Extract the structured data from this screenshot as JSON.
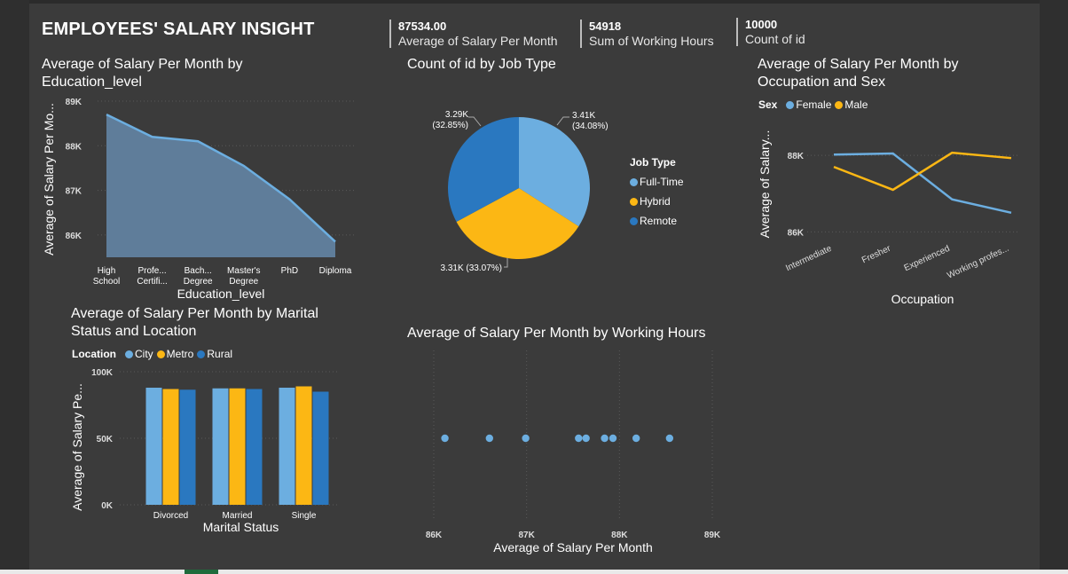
{
  "title": "EMPLOYEES' SALARY INSIGHT",
  "kpis": [
    {
      "value": "87534.00",
      "label": "Average of Salary Per Month"
    },
    {
      "value": "54918",
      "label": "Sum of Working Hours"
    },
    {
      "value": "10000",
      "label": "Count of id"
    }
  ],
  "colors": {
    "blue_light": "#6caee0",
    "yellow": "#fcb714",
    "blue_dark": "#2a78c0",
    "area": "#5f7d9a",
    "line": "#6caee0"
  },
  "chart_data": [
    {
      "type": "area",
      "title": "Average of Salary Per Month by Education_level",
      "xlabel": "Education_level",
      "ylabel": "Average of Salary Per Mo...",
      "categories": [
        [
          "High",
          "School"
        ],
        [
          "Profe...",
          "Certifi..."
        ],
        [
          "Bach...",
          "Degree"
        ],
        [
          "Master's",
          "Degree"
        ],
        [
          "PhD"
        ],
        [
          "Diploma"
        ]
      ],
      "values": [
        88700,
        88200,
        88100,
        87550,
        86800,
        85850
      ],
      "yticks": [
        "89K",
        "88K",
        "87K",
        "86K"
      ],
      "ytick_values": [
        89000,
        88000,
        87000,
        86000
      ],
      "ylim": [
        85500,
        89000
      ]
    },
    {
      "type": "pie",
      "title": "Count of id by Job Type",
      "legend_title": "Job Type",
      "slices": [
        {
          "name": "Full-Time",
          "value": 3410,
          "label": "3.41K",
          "pct": "(34.08%)"
        },
        {
          "name": "Hybrid",
          "value": 3310,
          "label": "3.31K (33.07%)",
          "pct": ""
        },
        {
          "name": "Remote",
          "value": 3290,
          "label": "3.29K",
          "pct": "(32.85%)"
        }
      ]
    },
    {
      "type": "line",
      "title": "Average of Salary Per Month by Occupation and Sex",
      "xlabel": "Occupation",
      "ylabel": "Average of Salary...",
      "legend_title": "Sex",
      "categories": [
        "Intermediate",
        "Fresher",
        "Experienced",
        "Working profes..."
      ],
      "series": [
        {
          "name": "Female",
          "values": [
            88020,
            88050,
            86850,
            86500
          ]
        },
        {
          "name": "Male",
          "values": [
            87700,
            87100,
            88070,
            87930
          ]
        }
      ],
      "yticks": [
        "88K",
        "86K"
      ],
      "ytick_values": [
        88000,
        86000
      ],
      "ylim": [
        85800,
        88700
      ]
    },
    {
      "type": "bar",
      "title": "Average of Salary Per Month by Marital Status and Location",
      "xlabel": "Marital Status",
      "ylabel": "Average of Salary Pe...",
      "legend_title": "Location",
      "categories": [
        "Divorced",
        "Married",
        "Single"
      ],
      "series": [
        {
          "name": "City",
          "values": [
            88000,
            87500,
            88000
          ]
        },
        {
          "name": "Metro",
          "values": [
            87000,
            87500,
            89000
          ]
        },
        {
          "name": "Rural",
          "values": [
            86500,
            87000,
            85000
          ]
        }
      ],
      "yticks": [
        "100K",
        "50K",
        "0K"
      ],
      "ytick_values": [
        100000,
        50000,
        0
      ],
      "ylim": [
        0,
        100000
      ]
    },
    {
      "type": "scatter",
      "title": "Average of Salary Per Month by Working Hours",
      "xlabel": "Average of Salary Per Month",
      "xticks": [
        "86K",
        "87K",
        "88K",
        "89K"
      ],
      "xtick_values": [
        86000,
        87000,
        88000,
        89000
      ],
      "xlim": [
        86000,
        89000
      ],
      "x": [
        86120,
        86600,
        86990,
        87560,
        87640,
        87840,
        87930,
        88180,
        88540
      ]
    }
  ]
}
